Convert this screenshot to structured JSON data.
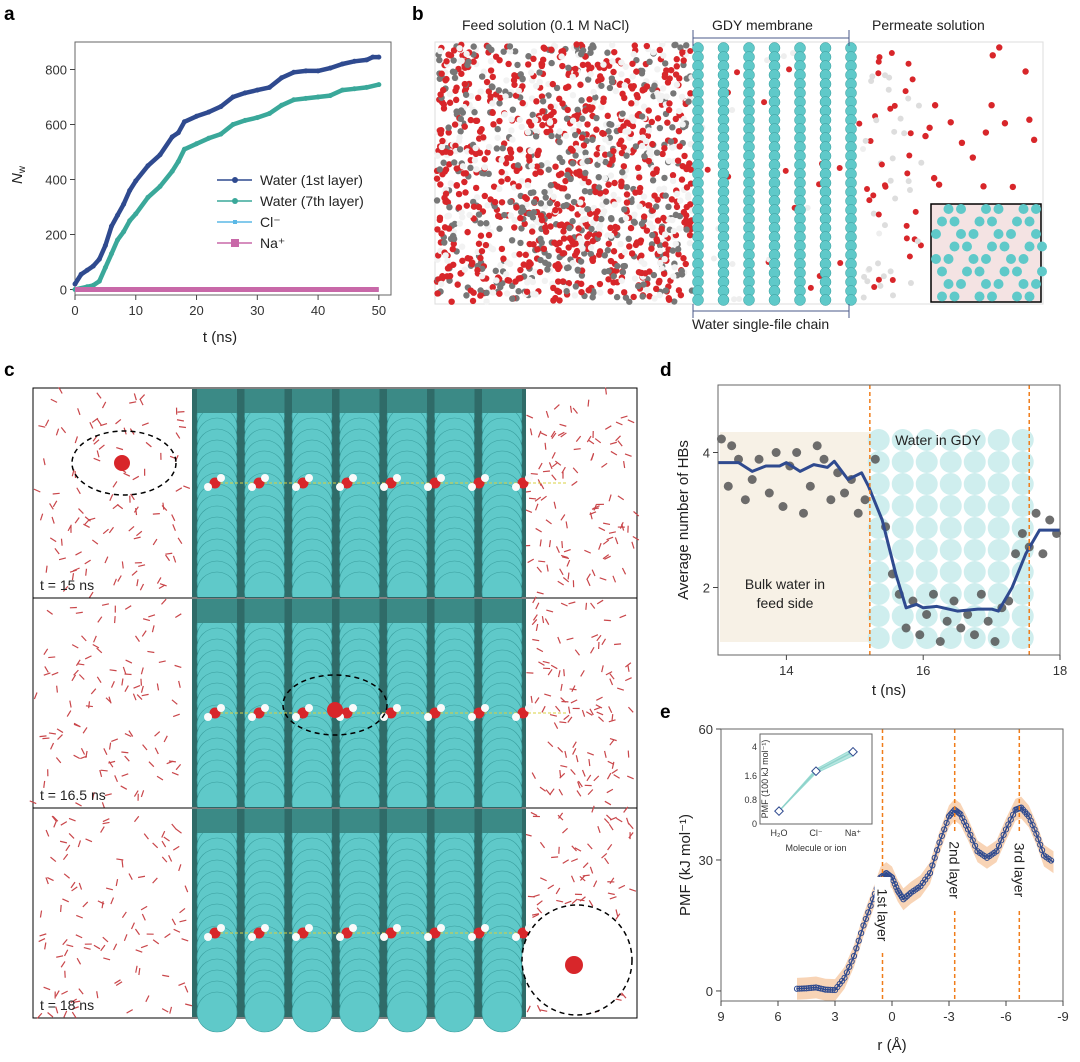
{
  "panels": {
    "a": {
      "letter": "a"
    },
    "b": {
      "letter": "b",
      "feed_label": "Feed solution (0.1 M NaCl)",
      "membrane_label": "GDY membrane",
      "permeate_label": "Permeate solution",
      "chain_label": "Water single-file chain"
    },
    "c": {
      "letter": "c",
      "frames": [
        "t = 15 ns",
        "t = 16.5 ns",
        "t = 18 ns"
      ]
    },
    "d": {
      "letter": "d"
    },
    "e": {
      "letter": "e"
    }
  },
  "colors": {
    "water1": "#2f4a8f",
    "water7": "#3aa89a",
    "cl": "#5bb8e6",
    "na": "#c868a8",
    "gdy": "#5fc9c9",
    "dashed": "#f07d1a",
    "band": "#f6c9a4",
    "oxygen": "#d8262a"
  },
  "chart_data": [
    {
      "id": "a",
      "type": "line",
      "xlabel": "t (ns)",
      "ylabel": {
        "symbol": "N",
        "subscript": "w"
      },
      "xlim": [
        0,
        52
      ],
      "ylim": [
        -20,
        900
      ],
      "xticks": [
        0,
        10,
        20,
        30,
        40,
        50
      ],
      "yticks": [
        0,
        200,
        400,
        600,
        800
      ],
      "legend": "center-right",
      "series": [
        {
          "name": "Water (1st layer)",
          "color": "#2f4a8f",
          "marker": "circle",
          "x": [
            0,
            1,
            2,
            3,
            4,
            5,
            6,
            7,
            8,
            9,
            10,
            12,
            14,
            16,
            17,
            18,
            20,
            22,
            24,
            26,
            28,
            30,
            32,
            34,
            36,
            38,
            40,
            42,
            44,
            46,
            48,
            49,
            50
          ],
          "y": [
            20,
            55,
            70,
            85,
            110,
            160,
            230,
            270,
            310,
            360,
            395,
            450,
            490,
            555,
            570,
            610,
            630,
            645,
            665,
            700,
            715,
            725,
            735,
            770,
            790,
            795,
            795,
            805,
            820,
            830,
            835,
            845,
            845
          ]
        },
        {
          "name": "Water (7th layer)",
          "color": "#3aa89a",
          "marker": "circle",
          "x": [
            0,
            2,
            3,
            4,
            5,
            6,
            7,
            8,
            9,
            10,
            12,
            14,
            16,
            17,
            18,
            20,
            22,
            24,
            26,
            28,
            30,
            32,
            34,
            36,
            38,
            40,
            42,
            44,
            46,
            48,
            50
          ],
          "y": [
            0,
            10,
            15,
            30,
            80,
            130,
            180,
            210,
            250,
            275,
            335,
            375,
            430,
            465,
            510,
            530,
            550,
            565,
            600,
            615,
            625,
            640,
            670,
            690,
            695,
            700,
            705,
            725,
            730,
            735,
            745
          ]
        },
        {
          "name": "Cl⁻",
          "color": "#5bb8e6",
          "marker": "small-square",
          "x": [
            0,
            50
          ],
          "y": [
            0,
            0
          ]
        },
        {
          "name": "Na⁺",
          "color": "#c868a8",
          "marker": "square",
          "x": [
            0,
            50
          ],
          "y": [
            0,
            0
          ]
        }
      ]
    },
    {
      "id": "d",
      "type": "line+scatter",
      "xlabel": "t (ns)",
      "ylabel": "Average number of HBs",
      "xlim": [
        13,
        18
      ],
      "ylim": [
        1.0,
        5.0
      ],
      "xticks": [
        14,
        16,
        18
      ],
      "yticks": [
        2,
        4
      ],
      "vlines": [
        15.22,
        17.55
      ],
      "annotations": [
        "Water in GDY",
        "Bulk water in",
        "feed side"
      ],
      "line": {
        "x": [
          13,
          13.3,
          13.5,
          13.7,
          13.9,
          14,
          14.2,
          14.4,
          14.6,
          14.7,
          14.9,
          15.1,
          15.2,
          15.4,
          15.6,
          15.75,
          15.9,
          16,
          16.2,
          16.5,
          16.8,
          17,
          17.1,
          17.3,
          17.5,
          17.7,
          17.8,
          18
        ],
        "y": [
          3.85,
          3.85,
          3.72,
          3.8,
          3.8,
          3.85,
          3.72,
          3.82,
          3.78,
          3.87,
          3.6,
          3.7,
          3.5,
          3.0,
          2.2,
          1.7,
          1.75,
          1.7,
          1.72,
          1.65,
          1.68,
          1.68,
          1.65,
          2.0,
          2.5,
          2.85,
          2.85,
          2.85
        ]
      },
      "scatter": {
        "x": [
          13.05,
          13.15,
          13.2,
          13.3,
          13.4,
          13.5,
          13.6,
          13.75,
          13.85,
          13.95,
          14.05,
          14.15,
          14.25,
          14.35,
          14.45,
          14.55,
          14.65,
          14.75,
          14.85,
          14.95,
          15.05,
          15.15,
          15.3,
          15.45,
          15.55,
          15.65,
          15.75,
          15.85,
          15.95,
          16.05,
          16.15,
          16.25,
          16.35,
          16.45,
          16.55,
          16.65,
          16.75,
          16.85,
          16.95,
          17.05,
          17.15,
          17.25,
          17.35,
          17.45,
          17.55,
          17.65,
          17.75,
          17.85,
          17.95
        ],
        "y": [
          4.2,
          3.5,
          4.1,
          3.9,
          3.3,
          3.6,
          3.9,
          3.4,
          4.0,
          3.2,
          3.8,
          4.0,
          3.1,
          3.5,
          4.1,
          3.9,
          3.3,
          3.7,
          3.4,
          3.6,
          3.1,
          3.3,
          3.9,
          2.9,
          2.2,
          1.9,
          1.4,
          1.8,
          1.3,
          1.6,
          1.9,
          1.2,
          1.5,
          1.8,
          1.4,
          1.6,
          1.3,
          1.9,
          1.5,
          1.2,
          1.7,
          1.8,
          2.5,
          2.8,
          2.6,
          3.1,
          2.5,
          3.0,
          2.8
        ]
      }
    },
    {
      "id": "e",
      "type": "line",
      "xlabel": "r (Å)",
      "ylabel": "PMF (kJ mol⁻¹)",
      "xlim": [
        9,
        -9
      ],
      "ylim": [
        -2.3,
        60
      ],
      "xticks": [
        9,
        6,
        3,
        0,
        -3,
        -6,
        -9
      ],
      "yticks": [
        0,
        30,
        60
      ],
      "vlines": [
        0.5,
        -3.3,
        -6.7
      ],
      "vline_labels": [
        "1st layer",
        "2nd layer",
        "3rd layer"
      ],
      "series": [
        {
          "color": "#2f4a8f",
          "marker": "open-circle",
          "band_color": "#f6c9a4",
          "x": [
            5,
            4.5,
            4,
            3.5,
            3,
            2.5,
            2,
            1.5,
            1,
            0.6,
            0.3,
            0,
            -0.3,
            -0.6,
            -1,
            -1.5,
            -2,
            -2.5,
            -3,
            -3.3,
            -3.6,
            -4,
            -4.5,
            -5,
            -5.5,
            -6,
            -6.5,
            -6.8,
            -7.2,
            -7.6,
            -8,
            -8.5
          ],
          "y": [
            0.5,
            0.6,
            0.8,
            0.3,
            0.2,
            3,
            8,
            15,
            21,
            26,
            27,
            26,
            23,
            21,
            22.5,
            24,
            27,
            34,
            40,
            41.5,
            40.5,
            37,
            32,
            30.5,
            32,
            37,
            41.5,
            42,
            40,
            36,
            31,
            29.5
          ]
        }
      ],
      "inset": {
        "type": "line",
        "xlabel": "Molecule or ion",
        "ylabel": "PMF (100 kJ mol⁻¹)",
        "categories": [
          "H₂O",
          "Cl⁻",
          "Na⁺"
        ],
        "values": [
          0.43,
          2.0,
          3.6
        ],
        "yticks": [
          0,
          0.8,
          1.6,
          4.0
        ],
        "axis_break": true
      }
    }
  ]
}
